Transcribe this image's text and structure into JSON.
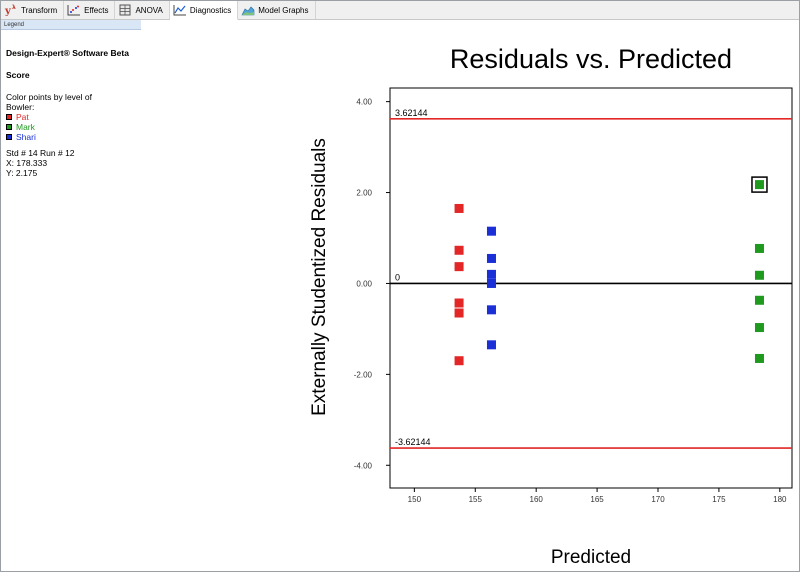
{
  "tabs": [
    {
      "label": "Transform",
      "icon": "transform-icon",
      "active": false
    },
    {
      "label": "Effects",
      "icon": "effects-icon",
      "active": false
    },
    {
      "label": "ANOVA",
      "icon": "anova-icon",
      "active": false
    },
    {
      "label": "Diagnostics",
      "icon": "diagnostics-icon",
      "active": true
    },
    {
      "label": "Model Graphs",
      "icon": "model-graphs-icon",
      "active": false
    }
  ],
  "legend": {
    "header": "Legend",
    "app_name": "Design-Expert® Software Beta",
    "response": "Score",
    "color_by_line1": "Color points by level of",
    "color_by_line2": "Bowler:",
    "entries": [
      {
        "label": "Pat",
        "color": "#e32626"
      },
      {
        "label": "Mark",
        "color": "#1f9a1f"
      },
      {
        "label": "Shari",
        "color": "#1a2fd6"
      }
    ],
    "selection_std_run": "Std # 14 Run # 12",
    "selection_x": "X: 178.333",
    "selection_y": "Y: 2.175"
  },
  "chart_data": {
    "type": "scatter",
    "title": "Residuals vs. Predicted",
    "xlabel": "Predicted",
    "ylabel": "Externally Studentized Residuals",
    "xlim": [
      148,
      181
    ],
    "ylim": [
      -4.5,
      4.3
    ],
    "xticks": [
      "150",
      "155",
      "160",
      "165",
      "170",
      "175",
      "180"
    ],
    "yticks": [
      "4.00",
      "2.00",
      "0.00",
      "-2.00",
      "-4.00"
    ],
    "reference_lines": [
      {
        "value": 3.62144,
        "label": "3.62144",
        "color": "#e32626"
      },
      {
        "value": 0,
        "label": "0",
        "color": "#000000"
      },
      {
        "value": -3.62144,
        "label": "-3.62144",
        "color": "#e32626"
      }
    ],
    "series": [
      {
        "name": "Pat",
        "color": "#e32626",
        "points": [
          {
            "x": 153.67,
            "y": 1.65
          },
          {
            "x": 153.67,
            "y": 0.73
          },
          {
            "x": 153.67,
            "y": 0.37
          },
          {
            "x": 153.67,
            "y": -0.43
          },
          {
            "x": 153.67,
            "y": -0.65
          },
          {
            "x": 153.67,
            "y": -1.7
          }
        ]
      },
      {
        "name": "Shari",
        "color": "#1a2fd6",
        "points": [
          {
            "x": 156.33,
            "y": 1.15
          },
          {
            "x": 156.33,
            "y": 0.55
          },
          {
            "x": 156.33,
            "y": 0.2
          },
          {
            "x": 156.33,
            "y": 0.0
          },
          {
            "x": 156.33,
            "y": -0.58
          },
          {
            "x": 156.33,
            "y": -1.35
          }
        ]
      },
      {
        "name": "Mark",
        "color": "#1f9a1f",
        "points": [
          {
            "x": 178.33,
            "y": 2.175,
            "selected": true
          },
          {
            "x": 178.33,
            "y": 0.77
          },
          {
            "x": 178.33,
            "y": 0.18
          },
          {
            "x": 178.33,
            "y": -0.37
          },
          {
            "x": 178.33,
            "y": -0.97
          },
          {
            "x": 178.33,
            "y": -1.65
          }
        ]
      }
    ]
  }
}
